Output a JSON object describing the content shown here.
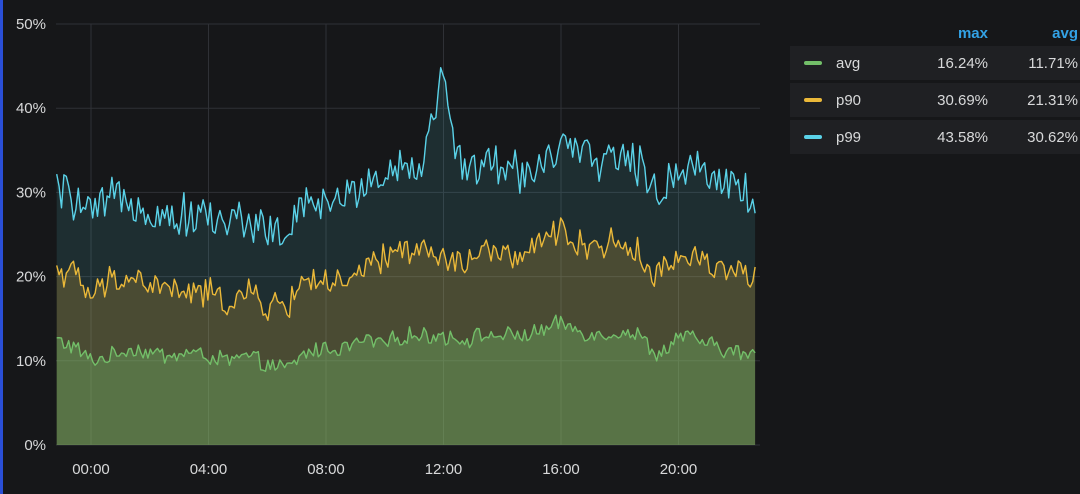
{
  "chart_data": {
    "type": "area",
    "title": "",
    "xlabel": "",
    "ylabel": "",
    "x_ticks": [
      "00:00",
      "04:00",
      "08:00",
      "12:00",
      "16:00",
      "20:00"
    ],
    "y_ticks": [
      "0%",
      "10%",
      "20%",
      "30%",
      "40%",
      "50%"
    ],
    "ylim": [
      0,
      50
    ],
    "y_unit": "%",
    "grid": true,
    "legend_placement": "right",
    "legend_columns": [
      "max",
      "avg"
    ],
    "series": [
      {
        "name": "avg",
        "color": "#73bf69",
        "max": "16.24%",
        "avg": "11.71%",
        "x": [
          "-01:10",
          "-00:30",
          "00:00",
          "00:40",
          "01:20",
          "02:00",
          "02:40",
          "03:20",
          "04:00",
          "04:40",
          "05:20",
          "06:00",
          "06:40",
          "07:20",
          "08:00",
          "08:40",
          "09:20",
          "10:00",
          "10:40",
          "11:20",
          "12:00",
          "12:40",
          "13:20",
          "14:00",
          "14:40",
          "15:20",
          "16:00",
          "16:40",
          "17:20",
          "18:00",
          "18:40",
          "19:20",
          "20:00",
          "20:40",
          "21:20",
          "22:00",
          "22:40"
        ],
        "y": [
          12.5,
          11.5,
          10.0,
          10.5,
          11.5,
          11.0,
          10.5,
          11.0,
          10.5,
          10.0,
          10.5,
          9.5,
          9.0,
          11.0,
          11.5,
          11.5,
          12.5,
          12.0,
          13.0,
          13.0,
          13.0,
          12.5,
          13.0,
          13.0,
          13.0,
          13.5,
          14.5,
          13.5,
          13.0,
          13.5,
          13.0,
          10.5,
          13.0,
          12.5,
          11.5,
          11.0,
          10.5
        ]
      },
      {
        "name": "p90",
        "color": "#eab839",
        "max": "30.69%",
        "avg": "21.31%",
        "x": [
          "-01:10",
          "-00:30",
          "00:00",
          "00:40",
          "01:20",
          "02:00",
          "02:40",
          "03:20",
          "04:00",
          "04:40",
          "05:20",
          "06:00",
          "06:40",
          "07:20",
          "08:00",
          "08:40",
          "09:20",
          "10:00",
          "10:40",
          "11:20",
          "12:00",
          "12:40",
          "13:20",
          "14:00",
          "14:40",
          "15:20",
          "16:00",
          "16:40",
          "17:20",
          "18:00",
          "18:40",
          "19:20",
          "20:00",
          "20:40",
          "21:20",
          "22:00",
          "22:40"
        ],
        "y": [
          21.0,
          20.0,
          17.5,
          19.5,
          20.0,
          19.0,
          18.5,
          18.0,
          18.0,
          17.0,
          18.0,
          16.5,
          16.5,
          20.0,
          19.5,
          18.5,
          21.0,
          22.0,
          23.5,
          23.0,
          22.0,
          21.5,
          23.0,
          22.5,
          22.5,
          23.5,
          26.0,
          23.5,
          24.0,
          24.0,
          22.5,
          20.0,
          22.5,
          22.5,
          21.0,
          21.0,
          19.5
        ]
      },
      {
        "name": "p99",
        "color": "#5ad2e8",
        "max": "43.58%",
        "avg": "30.62%",
        "x": [
          "-01:10",
          "-00:30",
          "00:00",
          "00:40",
          "01:20",
          "02:00",
          "02:40",
          "03:20",
          "04:00",
          "04:40",
          "05:20",
          "06:00",
          "06:40",
          "07:20",
          "08:00",
          "08:40",
          "09:20",
          "10:00",
          "10:40",
          "11:20",
          "11:55",
          "12:40",
          "13:20",
          "14:00",
          "14:40",
          "15:20",
          "16:00",
          "16:40",
          "17:20",
          "18:00",
          "18:40",
          "19:20",
          "20:00",
          "20:40",
          "21:20",
          "22:00",
          "22:40"
        ],
        "y": [
          30.5,
          29.0,
          27.0,
          29.0,
          29.5,
          28.0,
          27.0,
          27.5,
          27.0,
          26.5,
          27.0,
          25.5,
          25.0,
          28.5,
          29.0,
          29.0,
          31.5,
          32.0,
          33.5,
          33.5,
          43.58,
          32.5,
          33.5,
          33.0,
          32.5,
          33.5,
          35.5,
          34.0,
          34.0,
          34.5,
          33.0,
          30.0,
          33.0,
          33.0,
          32.0,
          31.0,
          28.5
        ]
      }
    ]
  }
}
